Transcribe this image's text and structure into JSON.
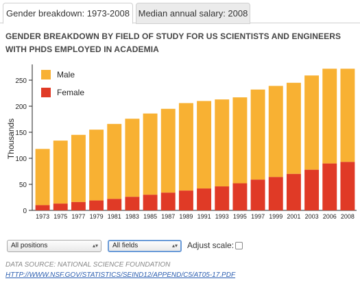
{
  "tabs": [
    {
      "label": "Gender breakdown: 1973-2008",
      "active": true
    },
    {
      "label": "Median annual salary: 2008",
      "active": false
    }
  ],
  "controls": {
    "positions_select": "All positions",
    "fields_select": "All fields",
    "adjust_scale_label": "Adjust scale:",
    "adjust_scale_checked": false
  },
  "source": {
    "text": "Data source: National Science Foundation",
    "link": "HTTP://WWW.NSF.GOV/STATISTICS/SEIND12/APPEND/C5/AT05-17.PDF"
  },
  "chart_data": {
    "type": "bar",
    "stacked": true,
    "title": "GENDER BREAKDOWN BY FIELD OF STUDY FOR US SCIENTISTS AND ENGINEERS WITH PHDS EMPLOYED IN ACADEMIA",
    "xlabel": "",
    "ylabel": "Thousands",
    "ylim": [
      0,
      275
    ],
    "yticks": [
      0,
      50,
      100,
      150,
      200,
      250
    ],
    "categories": [
      "1973",
      "1975",
      "1977",
      "1979",
      "1981",
      "1983",
      "1985",
      "1987",
      "1989",
      "1991",
      "1993",
      "1995",
      "1997",
      "1999",
      "2001",
      "2003",
      "2006",
      "2008"
    ],
    "series": [
      {
        "name": "Female",
        "color": "#e03a26",
        "values": [
          10,
          13,
          16,
          19,
          22,
          26,
          30,
          34,
          38,
          42,
          46,
          52,
          59,
          64,
          70,
          78,
          90,
          93
        ]
      },
      {
        "name": "Male",
        "color": "#f8b133",
        "values": [
          108,
          121,
          129,
          136,
          144,
          150,
          156,
          161,
          168,
          168,
          167,
          165,
          173,
          175,
          175,
          181,
          182,
          179
        ]
      }
    ],
    "legend": {
      "placement": "top-left",
      "order": [
        "Male",
        "Female"
      ]
    },
    "grid": false
  }
}
